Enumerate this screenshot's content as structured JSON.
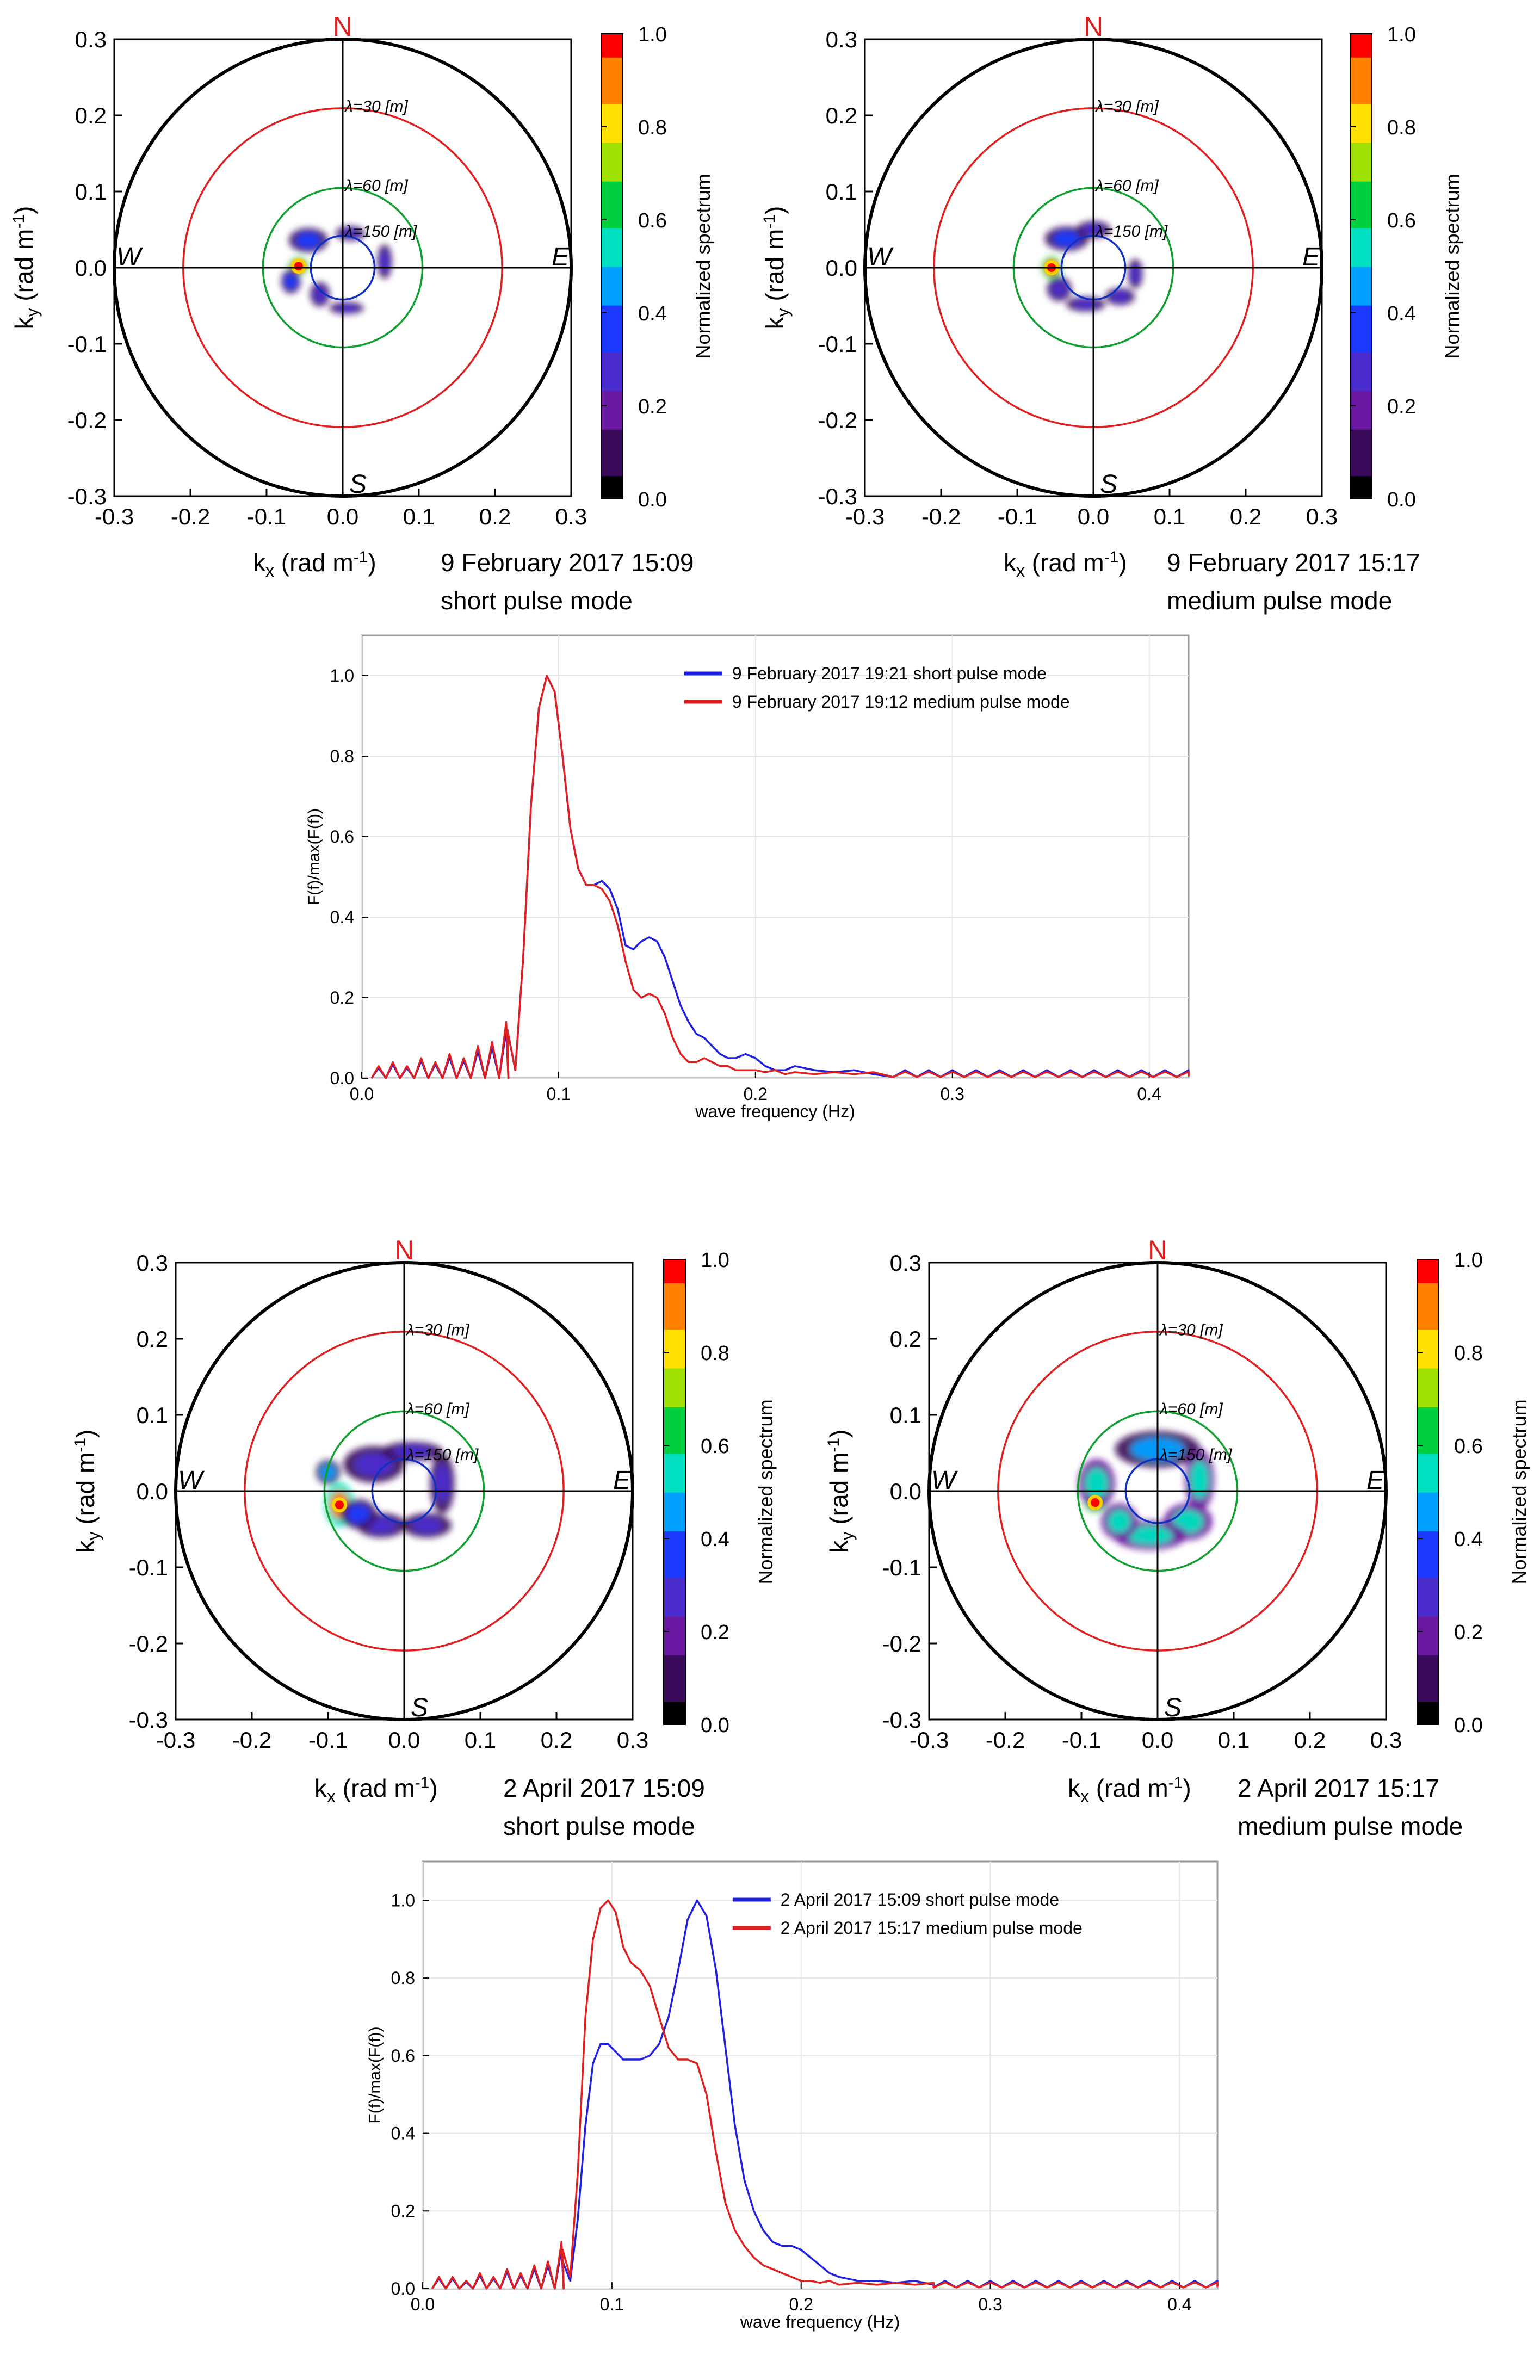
{
  "colorscale": [
    "#000000",
    "#3a0a5a",
    "#6a1aa0",
    "#4b2ccf",
    "#1c3bff",
    "#00a0ff",
    "#00e0c0",
    "#00d040",
    "#a0e000",
    "#ffe000",
    "#ff8000",
    "#ff0000"
  ],
  "chart_data": [
    {
      "type": "polar_spectrum",
      "id": "feb_short",
      "xlim": [
        -0.3,
        0.3
      ],
      "ylim": [
        -0.3,
        0.3
      ],
      "ticks": [
        "-0.3",
        "-0.2",
        "-0.1",
        "0.0",
        "0.1",
        "0.2",
        "0.3"
      ],
      "xlabel": "k",
      "xlabel_sub": "x",
      "xlabel_unit": " (rad m",
      "ylabel": "k",
      "ylabel_sub": "y",
      "ylabel_unit": " (rad m",
      "compass": {
        "n": "N",
        "s": "S",
        "e": "E",
        "w": "W"
      },
      "circles": [
        {
          "k": 0.3,
          "color": "#000000"
        },
        {
          "k": 0.2094,
          "color": "#e02020"
        },
        {
          "k": 0.1047,
          "color": "#10a030"
        },
        {
          "k": 0.0419,
          "color": "#1030c0"
        }
      ],
      "lambda_labels": [
        "λ=30 [m]",
        "λ=60 [m]",
        "λ=150 [m]"
      ],
      "colorbar": {
        "label": "Normalized spectrum",
        "min": 0.0,
        "max": 1.0,
        "ticks": [
          "0.0",
          "0.2",
          "0.4",
          "0.6",
          "0.8",
          "1.0"
        ]
      },
      "caption": [
        "9 February 2017 15:09",
        "short pulse mode"
      ],
      "peak": {
        "kx": -0.058,
        "ky": 0.002
      },
      "blobs": [
        {
          "kx": -0.058,
          "ky": 0.002,
          "sx": 0.008,
          "sy": 0.007,
          "a": 1.0
        },
        {
          "kx": -0.045,
          "ky": 0.036,
          "sx": 0.016,
          "sy": 0.01,
          "a": 0.35
        },
        {
          "kx": 0.01,
          "ky": 0.045,
          "sx": 0.012,
          "sy": 0.006,
          "a": 0.28
        },
        {
          "kx": 0.055,
          "ky": 0.008,
          "sx": 0.006,
          "sy": 0.014,
          "a": 0.28
        },
        {
          "kx": -0.03,
          "ky": -0.035,
          "sx": 0.008,
          "sy": 0.01,
          "a": 0.28
        },
        {
          "kx": 0.005,
          "ky": -0.053,
          "sx": 0.014,
          "sy": 0.005,
          "a": 0.26
        },
        {
          "kx": -0.068,
          "ky": -0.018,
          "sx": 0.008,
          "sy": 0.01,
          "a": 0.4
        }
      ]
    },
    {
      "type": "polar_spectrum",
      "id": "feb_medium",
      "xlim": [
        -0.3,
        0.3
      ],
      "ylim": [
        -0.3,
        0.3
      ],
      "ticks": [
        "-0.3",
        "-0.2",
        "-0.1",
        "0.0",
        "0.1",
        "0.2",
        "0.3"
      ],
      "xlabel": "k",
      "xlabel_sub": "x",
      "xlabel_unit": " (rad m",
      "ylabel": "k",
      "ylabel_sub": "y",
      "ylabel_unit": " (rad m",
      "compass": {
        "n": "N",
        "s": "S",
        "e": "E",
        "w": "W"
      },
      "circles": [
        {
          "k": 0.3,
          "color": "#000000"
        },
        {
          "k": 0.2094,
          "color": "#e02020"
        },
        {
          "k": 0.1047,
          "color": "#10a030"
        },
        {
          "k": 0.0419,
          "color": "#1030c0"
        }
      ],
      "lambda_labels": [
        "λ=30 [m]",
        "λ=60 [m]",
        "λ=150 [m]"
      ],
      "colorbar": {
        "label": "Normalized spectrum",
        "min": 0.0,
        "max": 1.0,
        "ticks": [
          "0.0",
          "0.2",
          "0.4",
          "0.6",
          "0.8",
          "1.0"
        ]
      },
      "caption": [
        "9 February 2017 15:17",
        "medium pulse mode"
      ],
      "peak": {
        "kx": -0.055,
        "ky": 0.0
      },
      "blobs": [
        {
          "kx": -0.055,
          "ky": 0.0,
          "sx": 0.008,
          "sy": 0.009,
          "a": 1.0
        },
        {
          "kx": -0.035,
          "ky": 0.038,
          "sx": 0.018,
          "sy": 0.01,
          "a": 0.35
        },
        {
          "kx": 0.0,
          "ky": 0.05,
          "sx": 0.014,
          "sy": 0.007,
          "a": 0.28
        },
        {
          "kx": -0.045,
          "ky": -0.028,
          "sx": 0.01,
          "sy": 0.01,
          "a": 0.3
        },
        {
          "kx": -0.01,
          "ky": -0.048,
          "sx": 0.016,
          "sy": 0.006,
          "a": 0.28
        },
        {
          "kx": 0.035,
          "ky": -0.038,
          "sx": 0.012,
          "sy": 0.007,
          "a": 0.26
        },
        {
          "kx": 0.055,
          "ky": -0.008,
          "sx": 0.006,
          "sy": 0.012,
          "a": 0.26
        }
      ]
    },
    {
      "type": "line",
      "id": "feb_freq",
      "xlim": [
        0.0,
        0.42
      ],
      "ylim": [
        0.0,
        1.1
      ],
      "xticks": [
        {
          "v": 0.0,
          "t": "0.0"
        },
        {
          "v": 0.1,
          "t": "0.1"
        },
        {
          "v": 0.2,
          "t": "0.2"
        },
        {
          "v": 0.3,
          "t": "0.3"
        },
        {
          "v": 0.4,
          "t": "0.4"
        }
      ],
      "yticks": [
        {
          "v": 0.0,
          "t": "0.0"
        },
        {
          "v": 0.2,
          "t": "0.2"
        },
        {
          "v": 0.4,
          "t": "0.4"
        },
        {
          "v": 0.6,
          "t": "0.6"
        },
        {
          "v": 0.8,
          "t": "0.8"
        },
        {
          "v": 1.0,
          "t": "1.0"
        }
      ],
      "xlabel": "wave frequency (Hz)",
      "ylabel": "F(f)/max(F(f))",
      "legend_position": "top-right",
      "series": [
        {
          "name": "9 February 2017 19:21 short pulse mode",
          "color": "#2020e0",
          "x": [
            0.074,
            0.078,
            0.082,
            0.086,
            0.09,
            0.094,
            0.098,
            0.102,
            0.106,
            0.11,
            0.114,
            0.118,
            0.122,
            0.126,
            0.13,
            0.134,
            0.138,
            0.142,
            0.146,
            0.15,
            0.154,
            0.158,
            0.162,
            0.166,
            0.17,
            0.174,
            0.178,
            0.182,
            0.186,
            0.19,
            0.195,
            0.2,
            0.205,
            0.21,
            0.215,
            0.22,
            0.23,
            0.24,
            0.25,
            0.26
          ],
          "y": [
            0.12,
            0.02,
            0.3,
            0.68,
            0.92,
            1.0,
            0.96,
            0.8,
            0.62,
            0.52,
            0.48,
            0.48,
            0.49,
            0.47,
            0.42,
            0.33,
            0.32,
            0.34,
            0.35,
            0.34,
            0.3,
            0.24,
            0.18,
            0.14,
            0.11,
            0.1,
            0.08,
            0.06,
            0.05,
            0.05,
            0.06,
            0.05,
            0.03,
            0.02,
            0.02,
            0.03,
            0.02,
            0.015,
            0.02,
            0.01
          ]
        },
        {
          "name": "9 February 2017 19:12 medium pulse mode",
          "color": "#e02020",
          "x": [
            0.074,
            0.078,
            0.082,
            0.086,
            0.09,
            0.094,
            0.098,
            0.102,
            0.106,
            0.11,
            0.114,
            0.118,
            0.122,
            0.126,
            0.13,
            0.134,
            0.138,
            0.142,
            0.146,
            0.15,
            0.154,
            0.158,
            0.162,
            0.166,
            0.17,
            0.174,
            0.178,
            0.182,
            0.186,
            0.19,
            0.195,
            0.2,
            0.205,
            0.21,
            0.215,
            0.22,
            0.23,
            0.24,
            0.25,
            0.26
          ],
          "y": [
            0.12,
            0.02,
            0.3,
            0.68,
            0.92,
            1.0,
            0.96,
            0.8,
            0.62,
            0.52,
            0.48,
            0.48,
            0.47,
            0.44,
            0.38,
            0.29,
            0.22,
            0.2,
            0.21,
            0.2,
            0.16,
            0.1,
            0.06,
            0.04,
            0.04,
            0.05,
            0.04,
            0.03,
            0.03,
            0.02,
            0.02,
            0.02,
            0.015,
            0.02,
            0.01,
            0.015,
            0.01,
            0.015,
            0.01,
            0.015
          ]
        }
      ],
      "low_bumps": [
        0.03,
        0.04,
        0.03,
        0.05,
        0.04,
        0.06,
        0.05,
        0.08,
        0.09,
        0.14
      ],
      "tail_bump": 0.02
    },
    {
      "type": "polar_spectrum",
      "id": "apr_short",
      "xlim": [
        -0.3,
        0.3
      ],
      "ylim": [
        -0.3,
        0.3
      ],
      "ticks": [
        "-0.3",
        "-0.2",
        "-0.1",
        "0.0",
        "0.1",
        "0.2",
        "0.3"
      ],
      "xlabel": "k",
      "xlabel_sub": "x",
      "xlabel_unit": " (rad m",
      "ylabel": "k",
      "ylabel_sub": "y",
      "ylabel_unit": " (rad m",
      "compass": {
        "n": "N",
        "s": "S",
        "e": "E",
        "w": "W"
      },
      "circles": [
        {
          "k": 0.3,
          "color": "#000000"
        },
        {
          "k": 0.2094,
          "color": "#e02020"
        },
        {
          "k": 0.1047,
          "color": "#10a030"
        },
        {
          "k": 0.0419,
          "color": "#1030c0"
        }
      ],
      "lambda_labels": [
        "λ=30 [m]",
        "λ=60 [m]",
        "λ=150 [m]"
      ],
      "colorbar": {
        "label": "Normalized spectrum",
        "min": 0.0,
        "max": 1.0,
        "ticks": [
          "0.0",
          "0.2",
          "0.4",
          "0.6",
          "0.8",
          "1.0"
        ]
      },
      "caption": [
        "2 April 2017 15:09",
        "short pulse mode"
      ],
      "peak": {
        "kx": -0.085,
        "ky": -0.018
      },
      "blobs": [
        {
          "kx": -0.085,
          "ky": -0.018,
          "sx": 0.012,
          "sy": 0.018,
          "a": 0.95
        },
        {
          "kx": -0.1,
          "ky": 0.025,
          "sx": 0.01,
          "sy": 0.01,
          "a": 0.45
        },
        {
          "kx": -0.04,
          "ky": 0.035,
          "sx": 0.025,
          "sy": 0.015,
          "a": 0.28
        },
        {
          "kx": 0.01,
          "ky": 0.052,
          "sx": 0.025,
          "sy": 0.008,
          "a": 0.26
        },
        {
          "kx": 0.05,
          "ky": 0.01,
          "sx": 0.01,
          "sy": 0.025,
          "a": 0.26
        },
        {
          "kx": 0.03,
          "ky": -0.045,
          "sx": 0.02,
          "sy": 0.01,
          "a": 0.26
        },
        {
          "kx": -0.03,
          "ky": -0.045,
          "sx": 0.02,
          "sy": 0.01,
          "a": 0.28
        },
        {
          "kx": -0.06,
          "ky": -0.03,
          "sx": 0.015,
          "sy": 0.012,
          "a": 0.4
        }
      ]
    },
    {
      "type": "polar_spectrum",
      "id": "apr_medium",
      "xlim": [
        -0.3,
        0.3
      ],
      "ylim": [
        -0.3,
        0.3
      ],
      "ticks": [
        "-0.3",
        "-0.2",
        "-0.1",
        "0.0",
        "0.1",
        "0.2",
        "0.3"
      ],
      "xlabel": "k",
      "xlabel_sub": "x",
      "xlabel_unit": " (rad m",
      "ylabel": "k",
      "ylabel_sub": "y",
      "ylabel_unit": " (rad m",
      "compass": {
        "n": "N",
        "s": "S",
        "e": "E",
        "w": "W"
      },
      "circles": [
        {
          "k": 0.3,
          "color": "#000000"
        },
        {
          "k": 0.2094,
          "color": "#e02020"
        },
        {
          "k": 0.1047,
          "color": "#10a030"
        },
        {
          "k": 0.0419,
          "color": "#1030c0"
        }
      ],
      "lambda_labels": [
        "λ=30 [m]",
        "λ=60 [m]",
        "λ=150 [m]"
      ],
      "colorbar": {
        "label": "Normalized spectrum",
        "min": 0.0,
        "max": 1.0,
        "ticks": [
          "0.0",
          "0.2",
          "0.4",
          "0.6",
          "0.8",
          "1.0"
        ]
      },
      "caption": [
        "2 April 2017 15:17",
        "medium pulse mode"
      ],
      "peak": {
        "kx": -0.082,
        "ky": -0.015
      },
      "blobs": [
        {
          "kx": -0.082,
          "ky": -0.015,
          "sx": 0.009,
          "sy": 0.008,
          "a": 1.0
        },
        {
          "kx": -0.08,
          "ky": 0.01,
          "sx": 0.015,
          "sy": 0.02,
          "a": 0.55
        },
        {
          "kx": 0.0,
          "ky": 0.055,
          "sx": 0.035,
          "sy": 0.015,
          "a": 0.45
        },
        {
          "kx": 0.055,
          "ky": 0.015,
          "sx": 0.012,
          "sy": 0.025,
          "a": 0.5
        },
        {
          "kx": 0.04,
          "ky": -0.04,
          "sx": 0.02,
          "sy": 0.015,
          "a": 0.55
        },
        {
          "kx": -0.01,
          "ky": -0.058,
          "sx": 0.03,
          "sy": 0.012,
          "a": 0.5
        },
        {
          "kx": -0.05,
          "ky": -0.04,
          "sx": 0.015,
          "sy": 0.015,
          "a": 0.55
        }
      ]
    },
    {
      "type": "line",
      "id": "apr_freq",
      "xlim": [
        0.0,
        0.42
      ],
      "ylim": [
        0.0,
        1.1
      ],
      "xticks": [
        {
          "v": 0.0,
          "t": "0.0"
        },
        {
          "v": 0.1,
          "t": "0.1"
        },
        {
          "v": 0.2,
          "t": "0.2"
        },
        {
          "v": 0.3,
          "t": "0.3"
        },
        {
          "v": 0.4,
          "t": "0.4"
        }
      ],
      "yticks": [
        {
          "v": 0.0,
          "t": "0.0"
        },
        {
          "v": 0.2,
          "t": "0.2"
        },
        {
          "v": 0.4,
          "t": "0.4"
        },
        {
          "v": 0.6,
          "t": "0.6"
        },
        {
          "v": 0.8,
          "t": "0.8"
        },
        {
          "v": 1.0,
          "t": "1.0"
        }
      ],
      "xlabel": "wave frequency (Hz)",
      "ylabel": "F(f)/max(F(f))",
      "legend_position": "top-right",
      "series": [
        {
          "name": "2 April 2017 15:09 short pulse mode",
          "color": "#2020e0",
          "x": [
            0.074,
            0.078,
            0.082,
            0.086,
            0.09,
            0.094,
            0.098,
            0.102,
            0.106,
            0.11,
            0.115,
            0.12,
            0.125,
            0.13,
            0.135,
            0.14,
            0.145,
            0.15,
            0.155,
            0.16,
            0.165,
            0.17,
            0.175,
            0.18,
            0.185,
            0.19,
            0.195,
            0.2,
            0.205,
            0.21,
            0.215,
            0.22,
            0.23,
            0.24,
            0.25,
            0.26,
            0.27
          ],
          "y": [
            0.07,
            0.02,
            0.18,
            0.42,
            0.58,
            0.63,
            0.63,
            0.61,
            0.59,
            0.59,
            0.59,
            0.6,
            0.63,
            0.7,
            0.82,
            0.95,
            1.0,
            0.96,
            0.82,
            0.62,
            0.42,
            0.28,
            0.2,
            0.15,
            0.12,
            0.11,
            0.11,
            0.1,
            0.08,
            0.06,
            0.04,
            0.03,
            0.02,
            0.02,
            0.015,
            0.02,
            0.01
          ]
        },
        {
          "name": "2 April 2017 15:17 medium pulse mode",
          "color": "#e02020",
          "x": [
            0.074,
            0.078,
            0.082,
            0.086,
            0.09,
            0.094,
            0.098,
            0.102,
            0.106,
            0.11,
            0.115,
            0.12,
            0.125,
            0.13,
            0.135,
            0.14,
            0.145,
            0.15,
            0.155,
            0.16,
            0.165,
            0.17,
            0.175,
            0.18,
            0.185,
            0.19,
            0.195,
            0.2,
            0.205,
            0.21,
            0.215,
            0.22,
            0.23,
            0.24,
            0.25,
            0.26,
            0.27
          ],
          "y": [
            0.1,
            0.03,
            0.3,
            0.7,
            0.9,
            0.98,
            1.0,
            0.97,
            0.88,
            0.84,
            0.82,
            0.78,
            0.7,
            0.62,
            0.59,
            0.59,
            0.58,
            0.5,
            0.35,
            0.22,
            0.15,
            0.11,
            0.08,
            0.06,
            0.05,
            0.04,
            0.03,
            0.02,
            0.02,
            0.015,
            0.02,
            0.01,
            0.015,
            0.01,
            0.015,
            0.01,
            0.015
          ]
        }
      ],
      "low_bumps": [
        0.03,
        0.03,
        0.02,
        0.04,
        0.03,
        0.05,
        0.04,
        0.06,
        0.07,
        0.12
      ],
      "tail_bump": 0.02
    }
  ]
}
